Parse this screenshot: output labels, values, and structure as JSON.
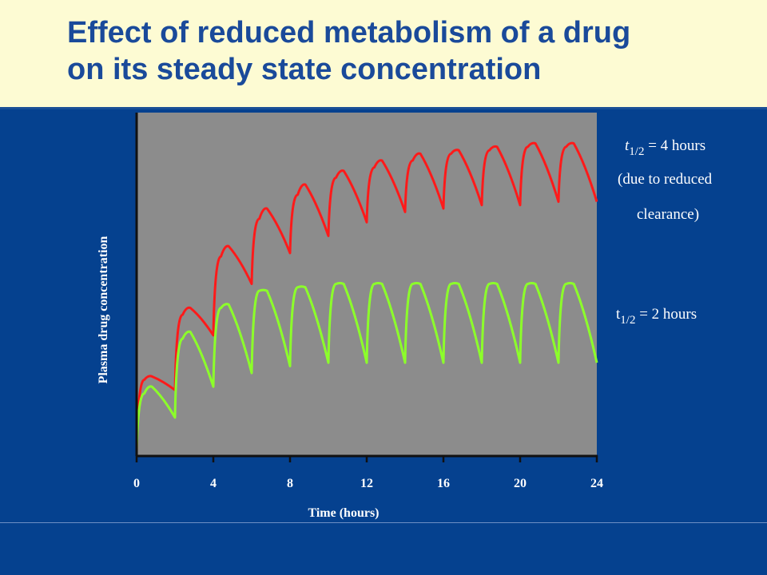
{
  "slide": {
    "title_line1": "Effect of reduced metabolism of a drug",
    "title_line2": "on its steady state concentration"
  },
  "annotations": {
    "slow_t": "t",
    "slow_sub": "1/2",
    "slow_value": "= 4 hours",
    "slow_note1": "(due to reduced",
    "slow_note2": "clearance)",
    "fast_t": "t",
    "fast_sub": "1/2",
    "fast_value": "= 2 hours"
  },
  "colors": {
    "background": "#05418f",
    "title_band": "#fdfbd3",
    "title_text": "#1a4a9a",
    "plot_area": "#8c8c8c",
    "series_slow": "#ff1a1a",
    "series_fast": "#8cff2a",
    "axis_text": "#ffffff"
  },
  "chart_data": {
    "type": "line",
    "title": "",
    "xlabel": "Time (hours)",
    "ylabel": "Plasma drug concentration",
    "xlim": [
      0,
      24
    ],
    "ylim": [
      0,
      1
    ],
    "x_ticks": [
      "0",
      "4",
      "8",
      "12",
      "16",
      "20",
      "24"
    ],
    "dose_interval_hours": 2,
    "grid": false,
    "series": [
      {
        "name": "t1/2 = 4 hours (due to reduced clearance)",
        "x": [
          0,
          0.4,
          0.8,
          2,
          2.4,
          2.8,
          4,
          4.4,
          4.8,
          6,
          6.4,
          6.8,
          8,
          8.4,
          8.8,
          10,
          10.4,
          10.8,
          12,
          12.4,
          12.8,
          14,
          14.4,
          14.8,
          16,
          16.4,
          16.8,
          18,
          18.4,
          18.8,
          20,
          20.4,
          20.8,
          22,
          22.4,
          22.8,
          24
        ],
        "values": [
          0.01,
          0.22,
          0.23,
          0.19,
          0.41,
          0.43,
          0.35,
          0.58,
          0.61,
          0.5,
          0.69,
          0.72,
          0.59,
          0.76,
          0.79,
          0.64,
          0.81,
          0.83,
          0.68,
          0.84,
          0.86,
          0.71,
          0.86,
          0.88,
          0.72,
          0.88,
          0.89,
          0.73,
          0.89,
          0.9,
          0.73,
          0.9,
          0.91,
          0.74,
          0.9,
          0.91,
          0.74
        ]
      },
      {
        "name": "t1/2 = 2 hours",
        "x": [
          0,
          0.4,
          0.8,
          2,
          2.4,
          2.8,
          4,
          4.4,
          4.8,
          6,
          6.4,
          6.8,
          8,
          8.4,
          8.8,
          10,
          10.4,
          10.8,
          12,
          12.4,
          12.8,
          14,
          14.4,
          14.8,
          16,
          16.4,
          16.8,
          18,
          18.4,
          18.8,
          20,
          20.4,
          20.8,
          22,
          22.4,
          22.8,
          24
        ],
        "values": [
          0.01,
          0.18,
          0.2,
          0.11,
          0.34,
          0.36,
          0.2,
          0.43,
          0.44,
          0.24,
          0.48,
          0.48,
          0.26,
          0.49,
          0.49,
          0.27,
          0.5,
          0.5,
          0.27,
          0.5,
          0.5,
          0.27,
          0.5,
          0.5,
          0.27,
          0.5,
          0.5,
          0.27,
          0.5,
          0.5,
          0.27,
          0.5,
          0.5,
          0.27,
          0.5,
          0.5,
          0.27
        ]
      }
    ]
  }
}
